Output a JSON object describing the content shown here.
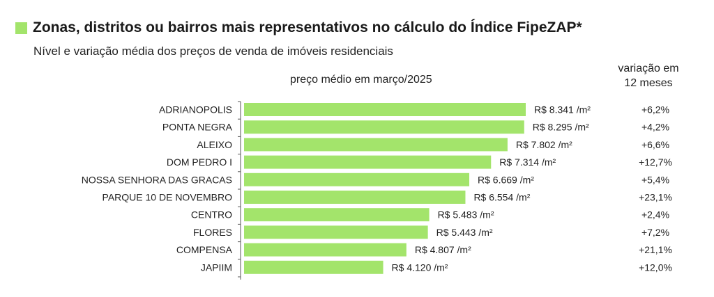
{
  "title": "Zonas, distritos ou bairros mais representativos no cálculo do Índice FipeZAP*",
  "subtitle": "Nível e variação média dos preços de venda de imóveis residenciais",
  "colors": {
    "bar": "#a3e46b",
    "axis": "#555555"
  },
  "chart_data": {
    "type": "bar",
    "orientation": "horizontal",
    "title": "Zonas, distritos ou bairros mais representativos no cálculo do Índice FipeZAP*",
    "xlabel": "preço médio em março/2025",
    "variation_header": "variação em 12 meses",
    "xlim": [
      0,
      8341
    ],
    "categories": [
      "ADRIANOPOLIS",
      "PONTA NEGRA",
      "ALEIXO",
      "DOM PEDRO I",
      "NOSSA SENHORA DAS GRACAS",
      "PARQUE 10 DE NOVEMBRO",
      "CENTRO",
      "FLORES",
      "COMPENSA",
      "JAPIIM"
    ],
    "values": [
      8341,
      8295,
      7802,
      7314,
      6669,
      6554,
      5483,
      5443,
      4807,
      4120
    ],
    "value_labels": [
      "R$ 8.341 /m²",
      "R$ 8.295 /m²",
      "R$ 7.802 /m²",
      "R$ 7.314 /m²",
      "R$ 6.669 /m²",
      "R$ 6.554 /m²",
      "R$ 5.483 /m²",
      "R$ 5.443 /m²",
      "R$ 4.807 /m²",
      "R$ 4.120 /m²"
    ],
    "variation": [
      "+6,2%",
      "+4,2%",
      "+6,6%",
      "+12,7%",
      "+5,4%",
      "+23,1%",
      "+2,4%",
      "+7,2%",
      "+21,1%",
      "+12,0%"
    ]
  }
}
